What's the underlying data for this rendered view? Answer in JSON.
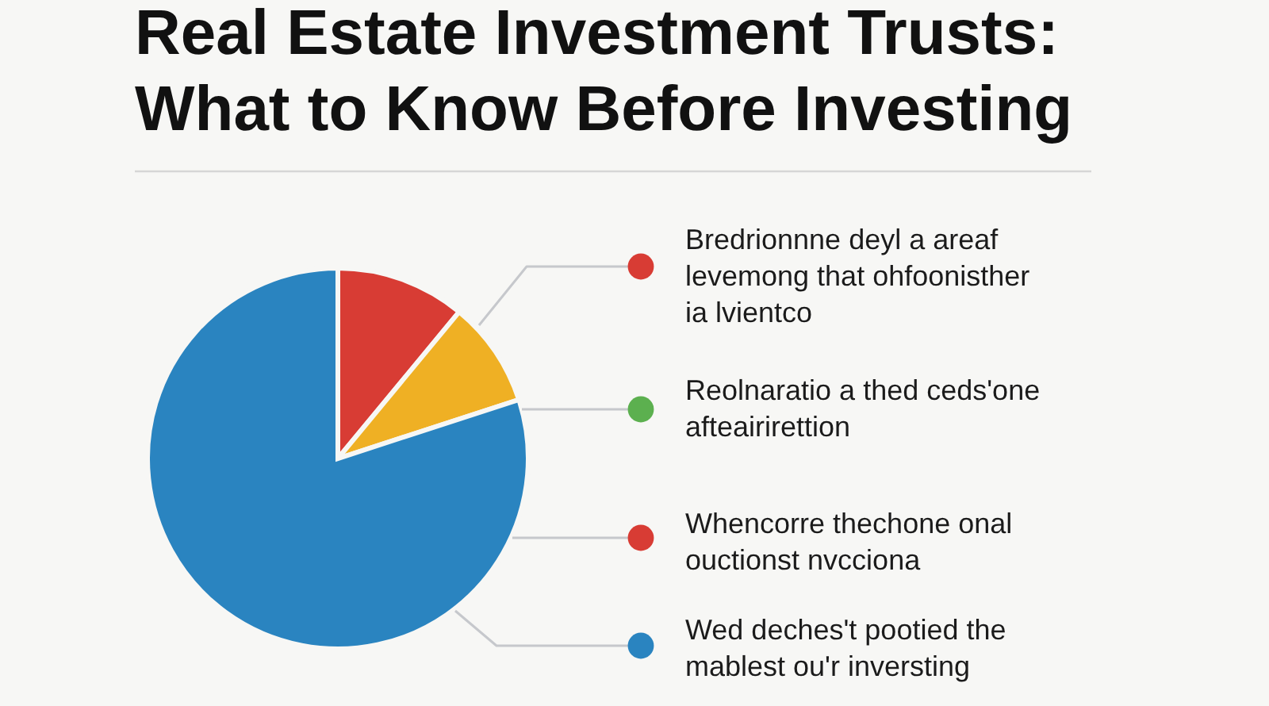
{
  "chart_data": {
    "type": "pie",
    "title": "Real Estate Investment Trusts:\nWhat to Know Before Investing",
    "categories": [
      null,
      null,
      null
    ],
    "values": [
      11,
      9,
      80
    ],
    "colors": [
      "#d83c34",
      "#efb024",
      "#2a84c0"
    ],
    "annotations": [
      "Bredrionnne deyl a areaf\nlevemong that ohfoonisther\nia lvientco",
      "Reolnaratio a thed ceds'one\nafteairirettion",
      "Whencorre thechone onal\nouctionst nvcciona",
      "Wed deches't pootied the\nmablest ou'r inversting"
    ]
  }
}
